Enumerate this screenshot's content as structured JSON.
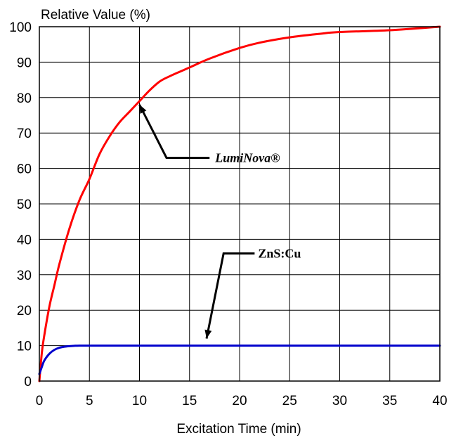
{
  "chart_data": {
    "type": "line",
    "ylabel": "Relative Value (%)",
    "xlabel": "Excitation Time (min)",
    "xlim": [
      0,
      40
    ],
    "ylim": [
      0,
      100
    ],
    "x_ticks": [
      0,
      5,
      10,
      15,
      20,
      25,
      30,
      35,
      40
    ],
    "y_ticks": [
      0,
      10,
      20,
      30,
      40,
      50,
      60,
      70,
      80,
      90,
      100
    ],
    "grid": true,
    "series": [
      {
        "name": "LumiNova®",
        "color": "#ff0000",
        "x": [
          0,
          0.25,
          0.5,
          1,
          1.5,
          2,
          3,
          4,
          5,
          6,
          7,
          8,
          9,
          10,
          11,
          12,
          13,
          15,
          17,
          20,
          22,
          25,
          28,
          30,
          35,
          40
        ],
        "y": [
          0,
          8,
          13,
          21,
          27,
          33,
          43,
          51,
          57,
          64,
          69,
          73,
          76,
          79,
          82,
          84.5,
          86,
          88.5,
          91,
          94,
          95.5,
          97,
          98,
          98.5,
          99,
          100
        ]
      },
      {
        "name": "ZnS:Cu",
        "color": "#0000cc",
        "x": [
          0,
          0.25,
          0.5,
          1,
          1.5,
          2,
          2.5,
          3,
          3.5,
          4,
          5,
          10,
          20,
          30,
          40
        ],
        "y": [
          2,
          4,
          5.8,
          7.7,
          8.8,
          9.4,
          9.7,
          9.85,
          9.95,
          10,
          10,
          10,
          10,
          10,
          10
        ]
      }
    ],
    "annotations": [
      {
        "text": "LumiNova®",
        "series": "LumiNova®",
        "point": [
          10,
          78
        ],
        "label_at": [
          17,
          63
        ]
      },
      {
        "text": "ZnS:Cu",
        "series": "ZnS:Cu",
        "point": [
          16.7,
          12
        ],
        "label_at": [
          21.5,
          36
        ]
      }
    ]
  }
}
